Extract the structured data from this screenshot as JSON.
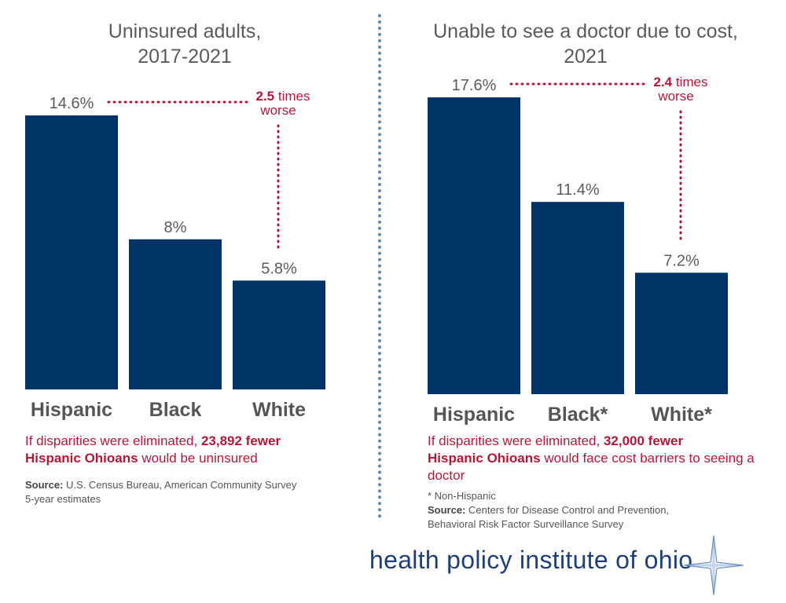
{
  "colors": {
    "bar": "#003366",
    "accent": "#b0183a",
    "value_text": "#5a5a5a",
    "category_text": "#555555",
    "brand": "#1f3f77",
    "divider": "#5b86bd"
  },
  "chart_data": [
    {
      "type": "bar",
      "title": "Uninsured adults,\n2017-2021",
      "title_lines": [
        "Uninsured adults,",
        "2017-2021"
      ],
      "categories": [
        "Hispanic",
        "Black",
        "White"
      ],
      "values": [
        14.6,
        8,
        5.8
      ],
      "value_labels": [
        "14.6%",
        "8%",
        "5.8%"
      ],
      "ylim": [
        0,
        14.6
      ],
      "grid": false,
      "annotation": {
        "bold": "2.5",
        "text_after": " times",
        "line2": "worse"
      }
    },
    {
      "type": "bar",
      "title": "Unable to see a doctor due to cost,\n2021",
      "title_lines": [
        "Unable to see a doctor due to cost,",
        "2021"
      ],
      "categories": [
        "Hispanic",
        "Black*",
        "White*"
      ],
      "values": [
        17.6,
        11.4,
        7.2
      ],
      "value_labels": [
        "17.6%",
        "11.4%",
        "7.2%"
      ],
      "ylim": [
        0,
        17.6
      ],
      "grid": false,
      "annotation": {
        "bold": "2.4",
        "text_after": " times",
        "line2": "worse"
      }
    }
  ],
  "left_note": {
    "pre": "If disparities were eliminated, ",
    "bold1": "23,892 fewer",
    "bold2": "Hispanic Ohioans",
    "post": " would be uninsured"
  },
  "right_note": {
    "pre": "If disparities were eliminated, ",
    "bold1": "32,000 fewer",
    "bold2": "Hispanic Ohioans",
    "post": " would face cost barriers to seeing a doctor"
  },
  "left_source": {
    "label": "Source:",
    "line1": " U.S. Census Bureau, American Community Survey",
    "line2": "5-year estimates"
  },
  "right_source": {
    "footnote": "* Non-Hispanic",
    "label": "Source:",
    "line1": " Centers for Disease Control and Prevention,",
    "line2": "Behavioral Risk Factor Surveillance Survey"
  },
  "brand": {
    "name": "health policy institute of ohio",
    "logo_icon": "compass-star-icon"
  }
}
